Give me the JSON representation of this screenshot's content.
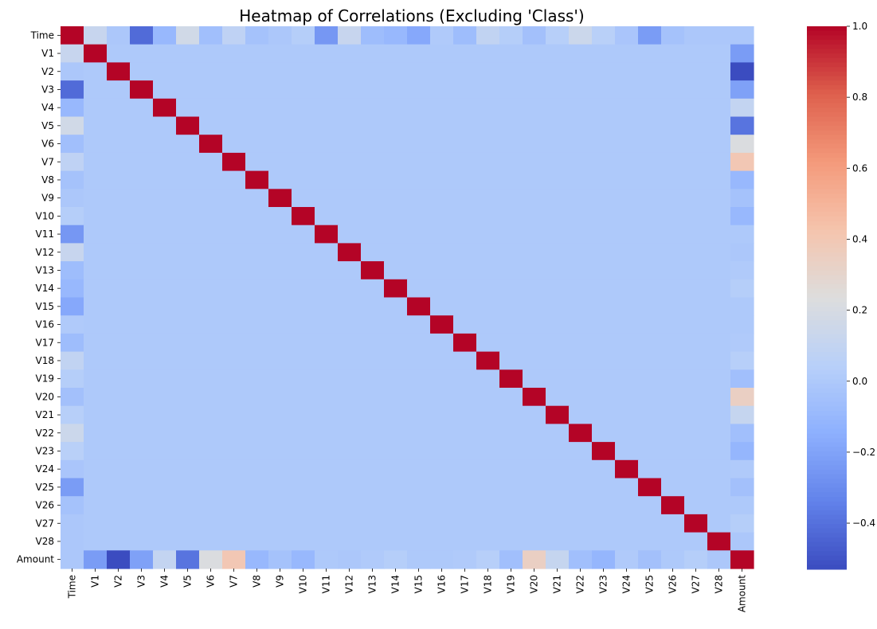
{
  "chart_data": {
    "type": "heatmap",
    "title": "Heatmap of Correlations (Excluding 'Class')",
    "labels": [
      "Time",
      "V1",
      "V2",
      "V3",
      "V4",
      "V5",
      "V6",
      "V7",
      "V8",
      "V9",
      "V10",
      "V11",
      "V12",
      "V13",
      "V14",
      "V15",
      "V16",
      "V17",
      "V18",
      "V19",
      "V20",
      "V21",
      "V22",
      "V23",
      "V24",
      "V25",
      "V26",
      "V27",
      "V28",
      "Amount"
    ],
    "colormap": "coolwarm",
    "vmin": -0.53,
    "vmax": 1.0,
    "colorbar_ticks": [
      {
        "value": 1.0,
        "label": "1.0"
      },
      {
        "value": 0.8,
        "label": "0.8"
      },
      {
        "value": 0.6,
        "label": "0.6"
      },
      {
        "value": 0.4,
        "label": "0.4"
      },
      {
        "value": 0.2,
        "label": "0.2"
      },
      {
        "value": 0.0,
        "label": "0.0"
      },
      {
        "value": -0.2,
        "label": "−0.2"
      },
      {
        "value": -0.4,
        "label": "−0.4"
      }
    ],
    "time_correlations": [
      1.0,
      0.12,
      -0.01,
      -0.42,
      -0.1,
      0.17,
      -0.06,
      0.08,
      -0.04,
      -0.01,
      0.03,
      -0.25,
      0.12,
      -0.07,
      -0.1,
      -0.18,
      0.01,
      -0.07,
      0.09,
      0.03,
      -0.05,
      0.04,
      0.14,
      0.05,
      -0.02,
      -0.23,
      -0.04,
      -0.01,
      -0.01,
      -0.01
    ],
    "amount_correlations": [
      -0.01,
      -0.23,
      -0.53,
      -0.21,
      0.1,
      -0.39,
      0.22,
      0.4,
      -0.1,
      -0.04,
      -0.1,
      0.0,
      -0.01,
      0.01,
      0.03,
      -0.0,
      -0.0,
      0.01,
      0.04,
      -0.06,
      0.34,
      0.11,
      -0.06,
      -0.11,
      0.01,
      -0.05,
      -0.0,
      0.03,
      -0.01,
      1.0
    ],
    "other_correlation": 0.0,
    "diagonal": 1.0
  }
}
